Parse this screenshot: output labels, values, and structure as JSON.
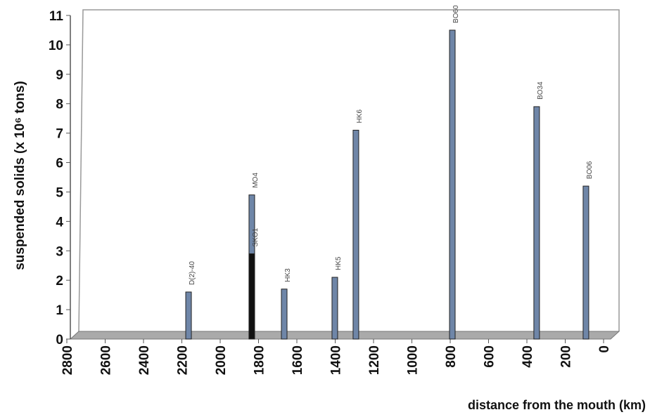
{
  "chart_data": {
    "type": "bar",
    "x_label": "distance from the mouth (km)",
    "y_label": "suspended solids (x 10⁶ tons)",
    "x": [
      2165,
      1835,
      1835,
      1666,
      1402,
      1292,
      789,
      349,
      92
    ],
    "values": [
      1.6,
      4.9,
      2.9,
      1.7,
      2.1,
      7.1,
      10.5,
      7.9,
      5.2
    ],
    "labels": [
      "D(2)-40",
      "MO4",
      "SKO1",
      "HK3",
      "HK5",
      "HK6",
      "BO60",
      "BO34",
      "BO06"
    ],
    "colors": [
      "#6f86a8",
      "#6f86a8",
      "#111111",
      "#6f86a8",
      "#6f86a8",
      "#6f86a8",
      "#6f86a8",
      "#6f86a8",
      "#6f86a8"
    ],
    "xlim": [
      2800,
      0
    ],
    "xticks": [
      2800,
      2600,
      2400,
      2200,
      2000,
      1800,
      1600,
      1400,
      1200,
      1000,
      800,
      600,
      400,
      200,
      0
    ],
    "ylim": [
      0,
      11
    ],
    "yticks": [
      0,
      1,
      2,
      3,
      4,
      5,
      6,
      7,
      8,
      9,
      10,
      11
    ]
  }
}
